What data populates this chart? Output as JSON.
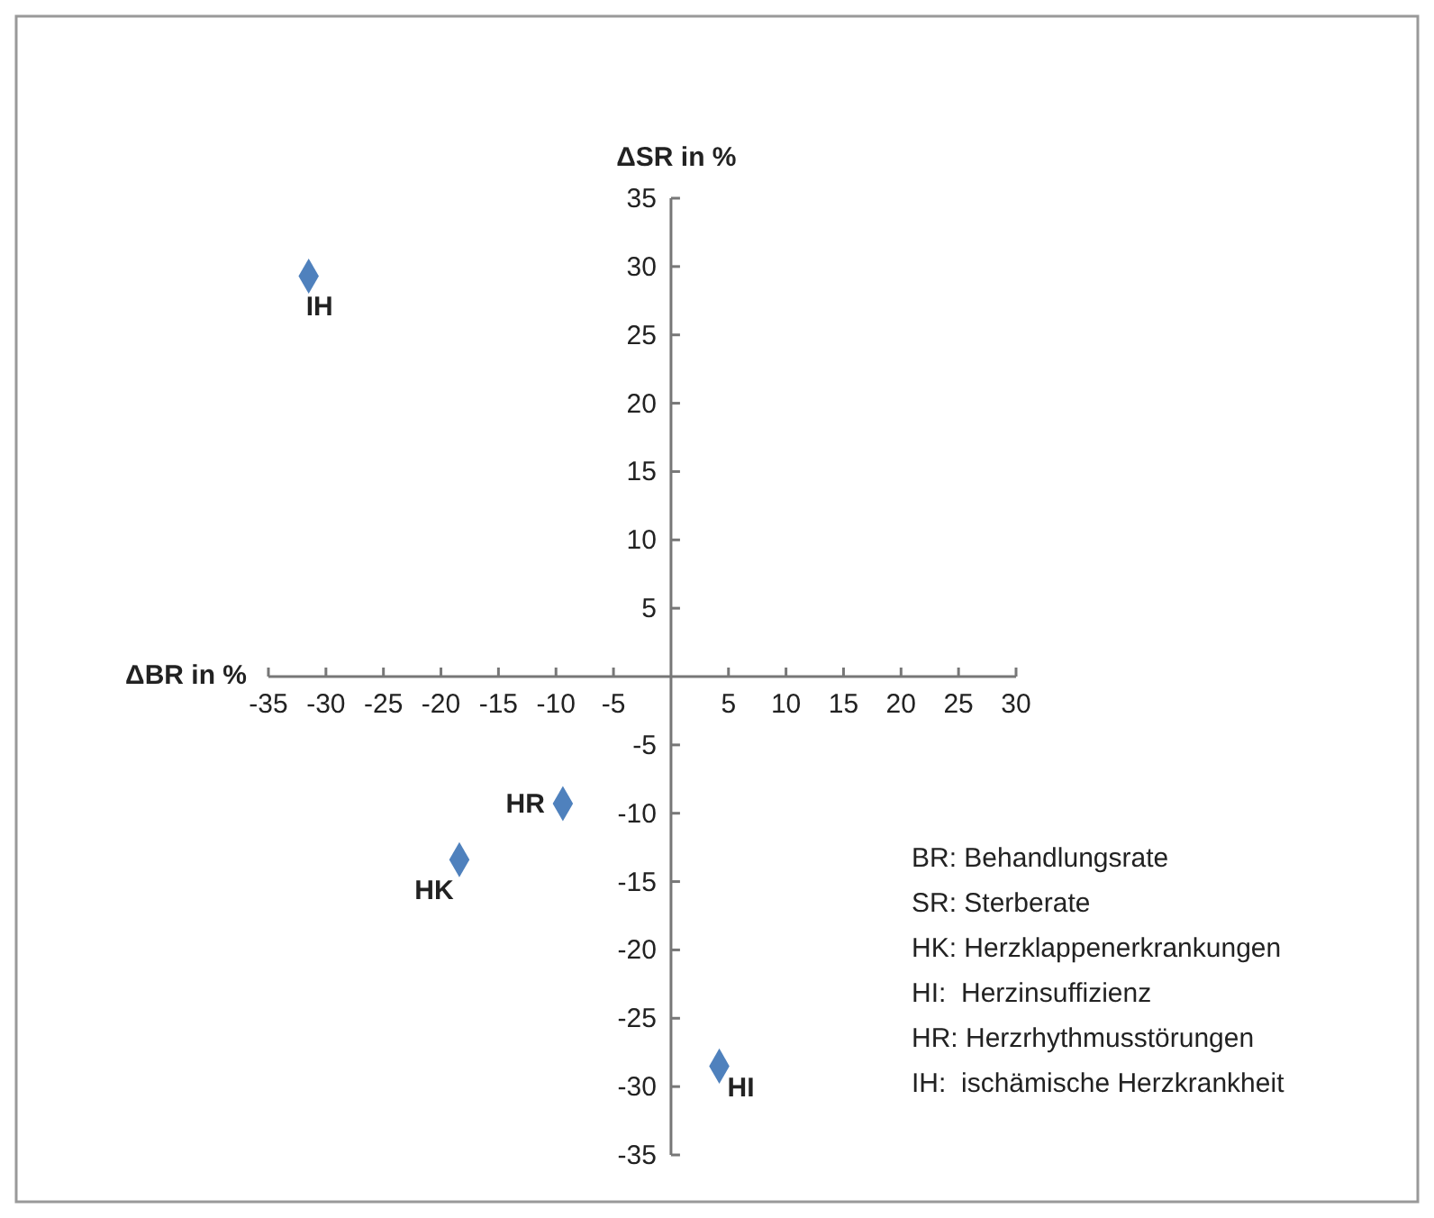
{
  "chart_data": {
    "type": "scatter",
    "xlabel": "ΔBR in %",
    "ylabel": "ΔSR in %",
    "x": [
      -31.5,
      -9.4,
      -18.4,
      4.2
    ],
    "series": [
      {
        "color": "#4f81bd",
        "values": [
          29.3,
          -9.3,
          -13.4,
          -28.5
        ]
      }
    ],
    "marker": "diamond",
    "xlim": [
      -35,
      30
    ],
    "xticks": [
      -35,
      -30,
      -25,
      -20,
      -15,
      -10,
      -5,
      5,
      10,
      15,
      20,
      25,
      30
    ],
    "ylim": [
      -35,
      35
    ],
    "yticks": [
      -35,
      -30,
      -25,
      -20,
      -15,
      -10,
      -5,
      5,
      10,
      15,
      20,
      25,
      30,
      35
    ],
    "annotations": [
      {
        "text": "IH",
        "x": -31.5,
        "y": 29.3
      },
      {
        "text": "HR",
        "x": -9.4,
        "y": -9.3
      },
      {
        "text": "HK",
        "x": -18.4,
        "y": -13.4
      },
      {
        "text": "HI",
        "x": 4.2,
        "y": -28.5
      },
      "BR: Behandlungsrate",
      "SR: Sterberate",
      "HK: Herzklappenerkrankungen",
      "HI:  Herzinsuffizienz",
      "HR: Herzrhythmusstörungen",
      "IH:  ischämische Herzkrankheit"
    ]
  }
}
